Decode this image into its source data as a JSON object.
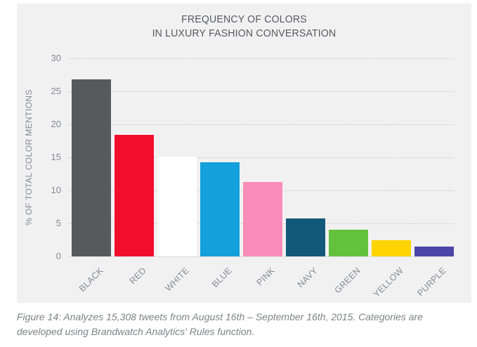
{
  "page": {
    "background": "#ffffff",
    "panel_background": "#f1f1f2"
  },
  "chart_data": {
    "type": "bar",
    "title": "FREQUENCY OF COLORS IN LUXURY FASHION CONVERSATION",
    "title_lines": [
      "FREQUENCY OF COLORS",
      "IN LUXURY FASHION CONVERSATION"
    ],
    "ylabel": "% OF TOTAL COLOR MENTIONS",
    "xlabel": "",
    "categories": [
      "BLACK",
      "RED",
      "WHITE",
      "BLUE",
      "PINK",
      "NAVY",
      "GREEN",
      "YELLOW",
      "PURPLE"
    ],
    "values": [
      26.8,
      18.4,
      15.1,
      14.3,
      11.3,
      5.7,
      4.0,
      2.4,
      1.5
    ],
    "bar_colors": [
      "#58595b",
      "#f20d2d",
      "#ffffff",
      "#14a0da",
      "#f98cba",
      "#125979",
      "#62c23c",
      "#ffd400",
      "#4a46a8"
    ],
    "ylim": [
      0,
      30
    ],
    "yticks": [
      0,
      5,
      10,
      15,
      20,
      25,
      30
    ],
    "grid": "horizontal-dotted",
    "legend": "none"
  },
  "colors": {
    "title_text": "#58595b",
    "axis_text": "#87898c",
    "gridline": "#c6c7c9",
    "caption_text": "#808285"
  },
  "caption": {
    "text": "Figure 14: Analyzes 15,308 tweets from August 16th – September 16th, 2015. Categories are developed using Brandwatch Analytics' Rules function."
  }
}
